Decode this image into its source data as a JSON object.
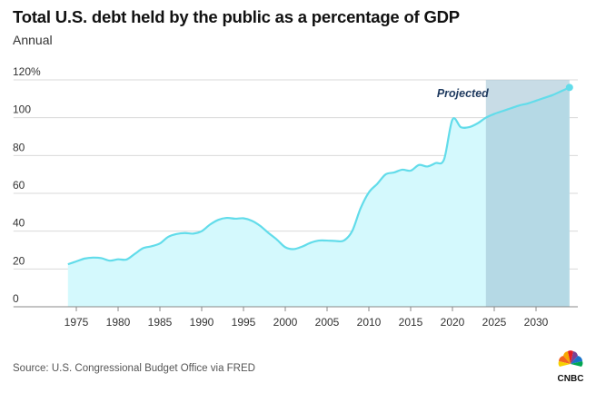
{
  "header": {
    "title": "Total U.S. debt held by the public as a percentage of GDP",
    "subtitle": "Annual"
  },
  "footer": {
    "source": "Source: U.S. Congressional Budget Office via FRED",
    "logo_text": "CNBC"
  },
  "colors": {
    "line": "#62dcea",
    "fill": "#d4f9fd",
    "projection_shade": "#9bbfd2",
    "projection_label": "#1f3a5f",
    "grid": "#d9d9d9",
    "axis": "#888888",
    "text": "#333333"
  },
  "chart_data": {
    "type": "area",
    "title": "Total U.S. debt held by the public as a percentage of GDP",
    "subtitle": "Annual",
    "xlabel": "",
    "ylabel": "",
    "xlim": [
      1970,
      2035
    ],
    "ylim": [
      0,
      120
    ],
    "yticks": [
      0,
      20,
      40,
      60,
      80,
      100,
      120
    ],
    "ytick_labels": [
      "0",
      "20",
      "40",
      "60",
      "80",
      "100",
      "120%"
    ],
    "xticks": [
      1975,
      1980,
      1985,
      1990,
      1995,
      2000,
      2005,
      2010,
      2015,
      2020,
      2025,
      2030
    ],
    "xtick_labels": [
      "1975",
      "1980",
      "1985",
      "1990",
      "1995",
      "2000",
      "2005",
      "2010",
      "2015",
      "2020",
      "2025",
      "2030"
    ],
    "grid": true,
    "projection": {
      "start": 2024,
      "end": 2034,
      "label": "Projected"
    },
    "series": [
      {
        "x": [
          1974,
          1975,
          1976,
          1977,
          1978,
          1979,
          1980,
          1981,
          1982,
          1983,
          1984,
          1985,
          1986,
          1987,
          1988,
          1989,
          1990,
          1991,
          1992,
          1993,
          1994,
          1995,
          1996,
          1997,
          1998,
          1999,
          2000,
          2001,
          2002,
          2003,
          2004,
          2005,
          2006,
          2007,
          2008,
          2009,
          2010,
          2011,
          2012,
          2013,
          2014,
          2015,
          2016,
          2017,
          2018,
          2019,
          2020,
          2021,
          2022,
          2023,
          2024,
          2025,
          2026,
          2027,
          2028,
          2029,
          2030,
          2031,
          2032,
          2033,
          2034
        ],
        "values": [
          22.5,
          24,
          25.5,
          26,
          25.7,
          24.4,
          25.1,
          25,
          28,
          31,
          32,
          33.5,
          37,
          38.5,
          39,
          38.7,
          40,
          43.5,
          46,
          47,
          46.6,
          46.8,
          45.5,
          42.8,
          39,
          35.5,
          31.5,
          30.5,
          31.8,
          33.8,
          35,
          35,
          34.8,
          35,
          40,
          52,
          60.5,
          65,
          70,
          71,
          72.5,
          72,
          75,
          74.2,
          76,
          78,
          99,
          95,
          95,
          97,
          100,
          102,
          103.5,
          105,
          106.5,
          107.5,
          109,
          110.5,
          112,
          114,
          116
        ]
      }
    ]
  }
}
